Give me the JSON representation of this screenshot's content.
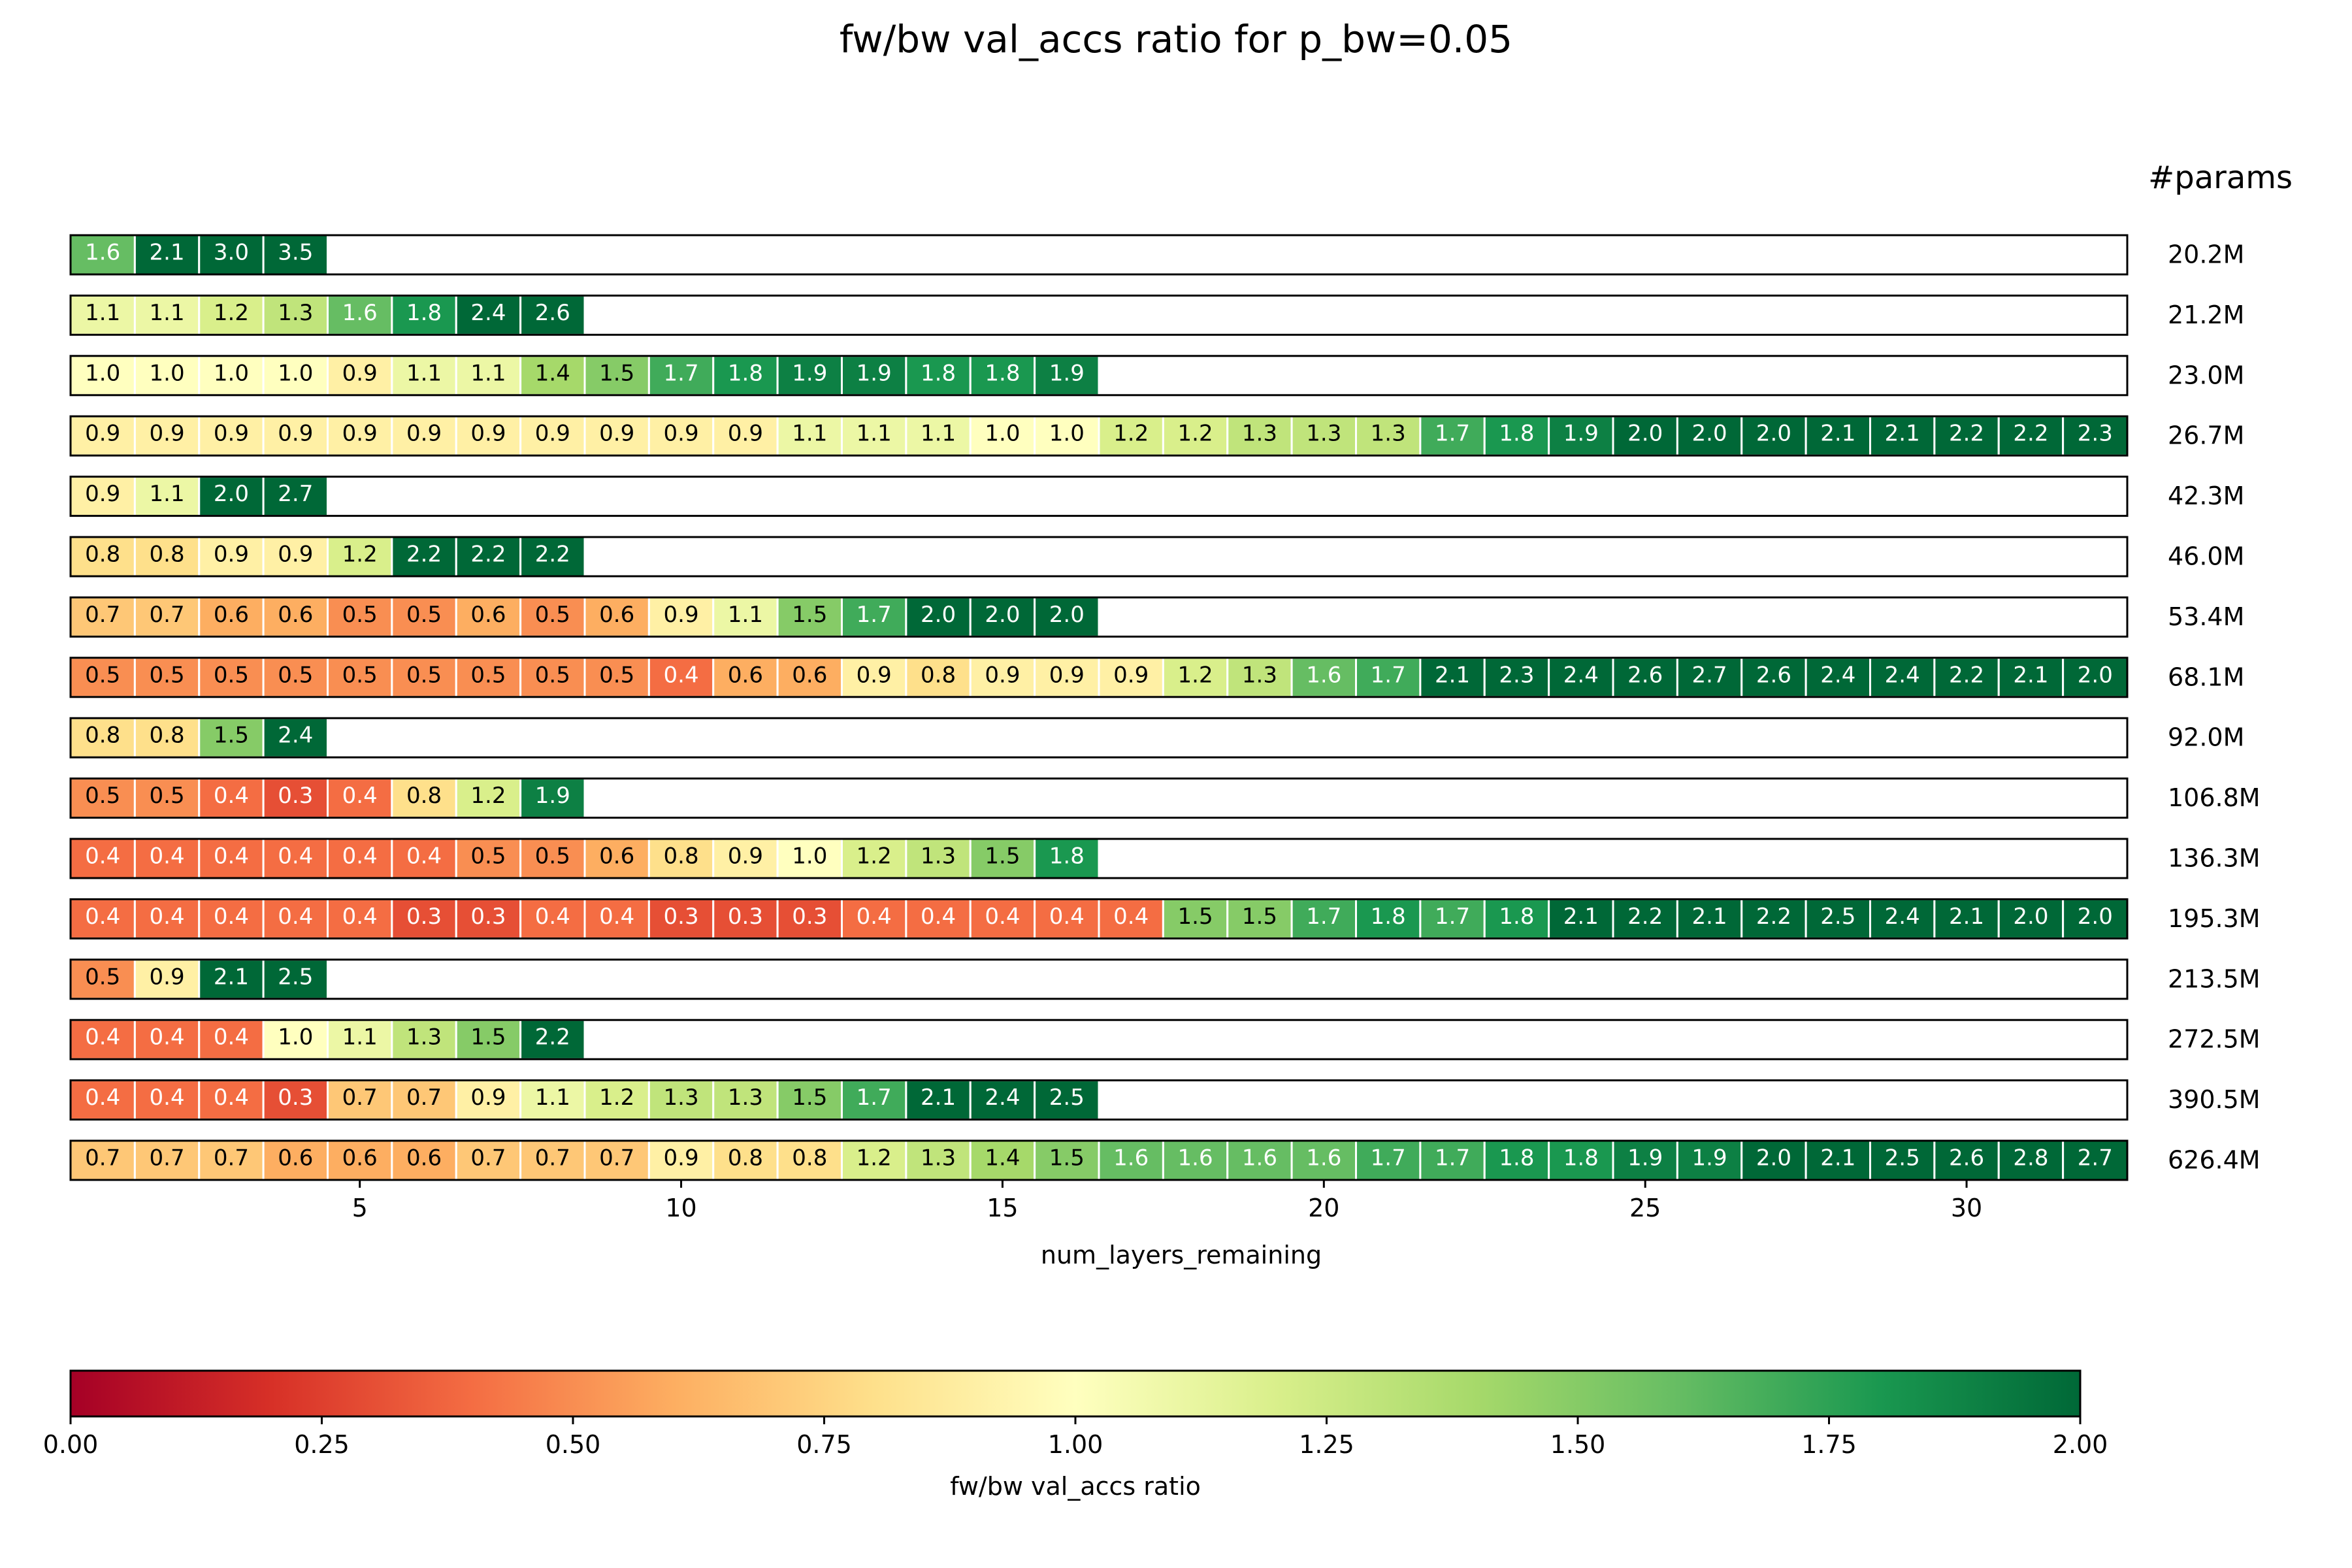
{
  "chart_data": {
    "type": "heatmap",
    "title": "fw/bw val_accs ratio for p_bw=0.05",
    "xlabel": "num_layers_remaining",
    "right_axis_title": "#params",
    "x_ticks": [
      5,
      10,
      15,
      20,
      25,
      30
    ],
    "x_range": [
      0.5,
      32.5
    ],
    "grid": false,
    "colormap": "RdYlGn",
    "color_range": [
      0.0,
      2.0
    ],
    "colorbar": {
      "label": "fw/bw val_accs ratio",
      "ticks": [
        "0.00",
        "0.25",
        "0.50",
        "0.75",
        "1.00",
        "1.25",
        "1.50",
        "1.75",
        "2.00"
      ],
      "orientation": "horizontal",
      "position": "bottom"
    },
    "rows": [
      {
        "params": "20.2M",
        "values": [
          1.6,
          2.1,
          3.0,
          3.5
        ]
      },
      {
        "params": "21.2M",
        "values": [
          1.1,
          1.1,
          1.2,
          1.3,
          1.6,
          1.8,
          2.4,
          2.6
        ]
      },
      {
        "params": "23.0M",
        "values": [
          1.0,
          1.0,
          1.0,
          1.0,
          0.9,
          1.1,
          1.1,
          1.4,
          1.5,
          1.7,
          1.8,
          1.9,
          1.9,
          1.8,
          1.8,
          1.9
        ]
      },
      {
        "params": "26.7M",
        "values": [
          0.9,
          0.9,
          0.9,
          0.9,
          0.9,
          0.9,
          0.9,
          0.9,
          0.9,
          0.9,
          0.9,
          1.1,
          1.1,
          1.1,
          1.0,
          1.0,
          1.2,
          1.2,
          1.3,
          1.3,
          1.3,
          1.7,
          1.8,
          1.9,
          2.0,
          2.0,
          2.0,
          2.1,
          2.1,
          2.2,
          2.2,
          2.3
        ]
      },
      {
        "params": "42.3M",
        "values": [
          0.9,
          1.1,
          2.0,
          2.7
        ]
      },
      {
        "params": "46.0M",
        "values": [
          0.8,
          0.8,
          0.9,
          0.9,
          1.2,
          2.2,
          2.2,
          2.2
        ]
      },
      {
        "params": "53.4M",
        "values": [
          0.7,
          0.7,
          0.6,
          0.6,
          0.5,
          0.5,
          0.6,
          0.5,
          0.6,
          0.9,
          1.1,
          1.5,
          1.7,
          2.0,
          2.0,
          2.0
        ]
      },
      {
        "params": "68.1M",
        "values": [
          0.5,
          0.5,
          0.5,
          0.5,
          0.5,
          0.5,
          0.5,
          0.5,
          0.5,
          0.4,
          0.6,
          0.6,
          0.9,
          0.8,
          0.9,
          0.9,
          0.9,
          1.2,
          1.3,
          1.6,
          1.7,
          2.1,
          2.3,
          2.4,
          2.6,
          2.7,
          2.6,
          2.4,
          2.4,
          2.2,
          2.1,
          2.0
        ]
      },
      {
        "params": "92.0M",
        "values": [
          0.8,
          0.8,
          1.5,
          2.4
        ]
      },
      {
        "params": "106.8M",
        "values": [
          0.5,
          0.5,
          0.4,
          0.3,
          0.4,
          0.8,
          1.2,
          1.9
        ]
      },
      {
        "params": "136.3M",
        "values": [
          0.4,
          0.4,
          0.4,
          0.4,
          0.4,
          0.4,
          0.5,
          0.5,
          0.6,
          0.8,
          0.9,
          1.0,
          1.2,
          1.3,
          1.5,
          1.8
        ]
      },
      {
        "params": "195.3M",
        "values": [
          0.4,
          0.4,
          0.4,
          0.4,
          0.4,
          0.3,
          0.3,
          0.4,
          0.4,
          0.3,
          0.3,
          0.3,
          0.4,
          0.4,
          0.4,
          0.4,
          0.4,
          1.5,
          1.5,
          1.7,
          1.8,
          1.7,
          1.8,
          2.1,
          2.2,
          2.1,
          2.2,
          2.5,
          2.4,
          2.1,
          2.0,
          2.0
        ]
      },
      {
        "params": "213.5M",
        "values": [
          0.5,
          0.9,
          2.1,
          2.5
        ]
      },
      {
        "params": "272.5M",
        "values": [
          0.4,
          0.4,
          0.4,
          1.0,
          1.1,
          1.3,
          1.5,
          2.2
        ]
      },
      {
        "params": "390.5M",
        "values": [
          0.4,
          0.4,
          0.4,
          0.3,
          0.7,
          0.7,
          0.9,
          1.1,
          1.2,
          1.3,
          1.3,
          1.5,
          1.7,
          2.1,
          2.4,
          2.5
        ]
      },
      {
        "params": "626.4M",
        "values": [
          0.7,
          0.7,
          0.7,
          0.6,
          0.6,
          0.6,
          0.7,
          0.7,
          0.7,
          0.9,
          0.8,
          0.8,
          1.2,
          1.3,
          1.4,
          1.5,
          1.6,
          1.6,
          1.6,
          1.6,
          1.7,
          1.7,
          1.8,
          1.8,
          1.9,
          1.9,
          2.0,
          2.1,
          2.5,
          2.6,
          2.8,
          2.7
        ]
      }
    ]
  }
}
